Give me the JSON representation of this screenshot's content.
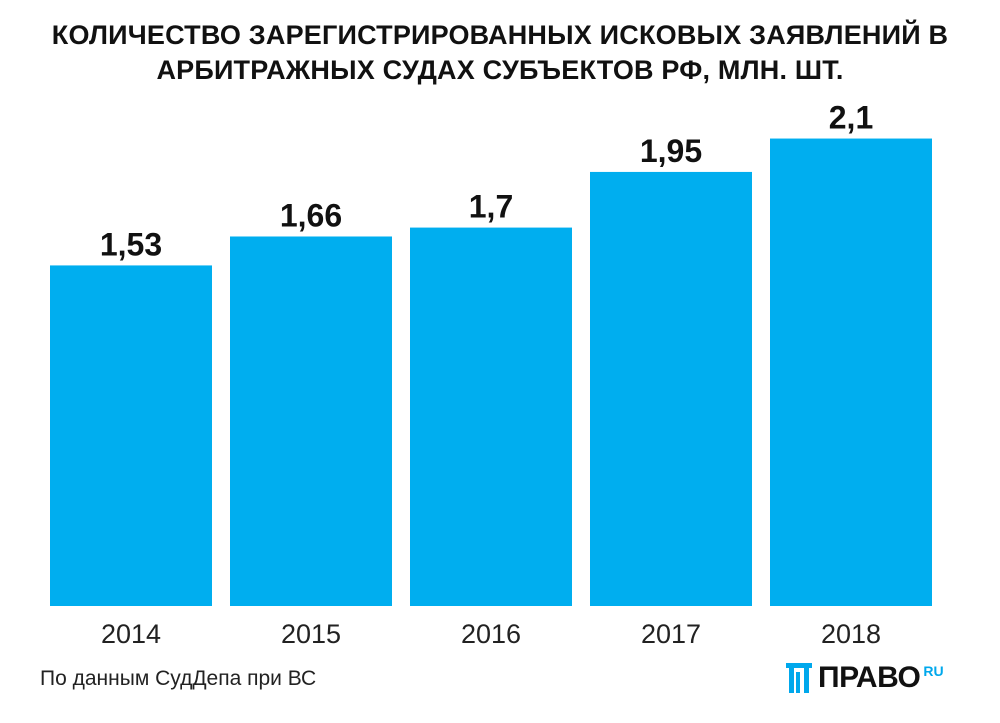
{
  "title": {
    "line1": "КОЛИЧЕСТВО ЗАРЕГИСТРИРОВАННЫХ ИСКОВЫХ ЗАЯВЛЕНИЙ В",
    "line2": "АРБИТРАЖНЫХ СУДАХ СУБЪЕКТОВ РФ, МЛН. ШТ."
  },
  "chart_data": {
    "type": "bar",
    "title": "КОЛИЧЕСТВО ЗАРЕГИСТРИРОВАННЫХ ИСКОВЫХ ЗАЯВЛЕНИЙ В АРБИТРАЖНЫХ СУДАХ СУБЪЕКТОВ РФ, МЛН. ШТ.",
    "categories": [
      "2014",
      "2015",
      "2016",
      "2017",
      "2018"
    ],
    "values": [
      1.53,
      1.66,
      1.7,
      1.95,
      2.1
    ],
    "value_labels": [
      "1,53",
      "1,66",
      "1,7",
      "1,95",
      "2,1"
    ],
    "xlabel": "",
    "ylabel": "",
    "grid": false,
    "bar_color": "#00aeef"
  },
  "source": "По данным СудДепа при ВС",
  "logo": {
    "main": "ПРАВО",
    "suffix": "RU",
    "accent_color": "#00a8ec"
  }
}
